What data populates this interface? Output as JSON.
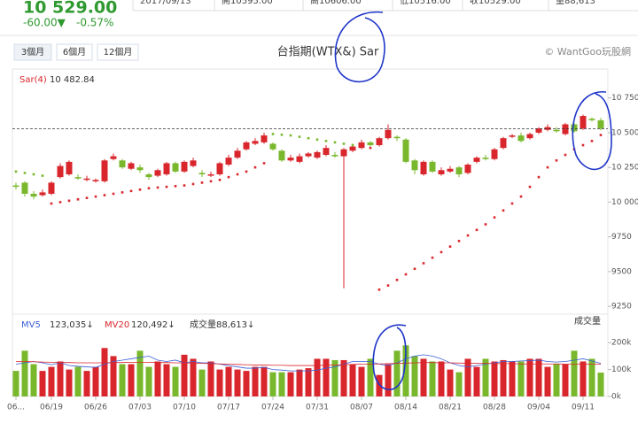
{
  "header": {
    "strip": [
      "2017/09/13",
      "開10595.00",
      "高10606.00",
      "低10516.00",
      "收10529.00",
      "量88,613"
    ],
    "price": "10 529.00",
    "change": "-60.00▼",
    "pct": "-0.57%",
    "buttons": [
      "3個月",
      "6個月",
      "12個月"
    ],
    "title": "台指期(WTX&) Sar",
    "copyright": "© WantGoo玩股網"
  },
  "chart_data": {
    "type": "candlestick",
    "categories": [
      "06...",
      null,
      null,
      null,
      "06/19",
      null,
      null,
      null,
      null,
      "06/26",
      null,
      null,
      null,
      null,
      "07/03",
      null,
      null,
      null,
      null,
      "07/10",
      null,
      null,
      null,
      null,
      "07/17",
      null,
      null,
      null,
      null,
      "07/24",
      null,
      null,
      null,
      null,
      "07/31",
      null,
      null,
      null,
      null,
      "08/07",
      null,
      null,
      null,
      null,
      "08/14",
      null,
      null,
      null,
      null,
      "08/21",
      null,
      null,
      null,
      null,
      "08/28",
      null,
      null,
      null,
      null,
      "09/04",
      null,
      null,
      null,
      null,
      "09/11",
      null,
      null
    ],
    "open": [
      10120,
      10140,
      10060,
      10050,
      10060,
      10180,
      10200,
      10180,
      10160,
      10150,
      10150,
      10310,
      10300,
      10240,
      10250,
      10200,
      10190,
      10200,
      10280,
      10220,
      10260,
      10210,
      10190,
      10200,
      10270,
      10320,
      10380,
      10420,
      10430,
      10420,
      10370,
      10300,
      10290,
      10330,
      10320,
      10340,
      10340,
      10330,
      10370,
      10390,
      10430,
      10410,
      10460,
      10470,
      10450,
      10300,
      10200,
      10290,
      10200,
      10220,
      10250,
      10210,
      10290,
      10320,
      10310,
      10390,
      10470,
      10480,
      10460,
      10500,
      10520,
      10520,
      10490,
      10560,
      10530,
      10600,
      10589
    ],
    "high": [
      10140,
      10150,
      10080,
      10090,
      10150,
      10280,
      10300,
      10200,
      10190,
      10170,
      10310,
      10350,
      10310,
      10290,
      10270,
      10210,
      10240,
      10290,
      10290,
      10300,
      10320,
      10230,
      10220,
      10290,
      10340,
      10390,
      10440,
      10460,
      10500,
      10430,
      10380,
      10340,
      10350,
      10360,
      10370,
      10410,
      10360,
      10390,
      10420,
      10450,
      10440,
      10470,
      10560,
      10480,
      10460,
      10310,
      10300,
      10300,
      10250,
      10260,
      10260,
      10280,
      10330,
      10340,
      10390,
      10470,
      10490,
      10500,
      10500,
      10540,
      10560,
      10540,
      10570,
      10570,
      10630,
      10610,
      10606
    ],
    "low": [
      10090,
      10040,
      10020,
      10040,
      10050,
      10170,
      10190,
      10160,
      10150,
      10140,
      10140,
      10300,
      10240,
      10230,
      10210,
      10160,
      10180,
      10190,
      10210,
      10210,
      10250,
      10180,
      10180,
      10190,
      10260,
      10310,
      10370,
      10410,
      10420,
      10370,
      10290,
      10290,
      10280,
      10320,
      10310,
      10330,
      10320,
      9380,
      10360,
      10380,
      10400,
      10400,
      10450,
      10440,
      10280,
      10200,
      10190,
      10210,
      10190,
      10210,
      10180,
      10200,
      10280,
      10300,
      10300,
      10380,
      10460,
      10430,
      10450,
      10490,
      10510,
      10500,
      10480,
      10500,
      10520,
      10580,
      10516
    ],
    "close": [
      10110,
      10060,
      10040,
      10070,
      10140,
      10260,
      10290,
      10170,
      10170,
      10160,
      10300,
      10330,
      10250,
      10280,
      10230,
      10180,
      10230,
      10280,
      10220,
      10290,
      10300,
      10200,
      10200,
      10280,
      10320,
      10370,
      10430,
      10440,
      10480,
      10380,
      10300,
      10320,
      10330,
      10350,
      10360,
      10390,
      10330,
      10380,
      10400,
      10430,
      10410,
      10460,
      10520,
      10460,
      10290,
      10230,
      10290,
      10220,
      10230,
      10240,
      10200,
      10270,
      10320,
      10310,
      10380,
      10460,
      10480,
      10440,
      10490,
      10530,
      10540,
      10510,
      10560,
      10510,
      10620,
      10590,
      10529
    ],
    "up_color": "#d9262c",
    "down_color": "#79b82c",
    "ylim": [
      9200,
      10800
    ],
    "yticks": [
      {
        "value": 10750,
        "label": "10 750"
      },
      {
        "value": 10500,
        "label": "10 500"
      },
      {
        "value": 10250,
        "label": "10 250"
      },
      {
        "value": 10000,
        "label": "10 000"
      },
      9750,
      9500,
      9250
    ],
    "sar": {
      "name": "Sar(4)",
      "value_label": "10 482.84",
      "values": [
        10220,
        10210,
        10200,
        10190,
        9990,
        10000,
        10010,
        10020,
        10030,
        10040,
        10050,
        10060,
        10070,
        10080,
        10090,
        10100,
        10105,
        10110,
        10115,
        10120,
        10130,
        10140,
        10150,
        10160,
        10180,
        10200,
        10220,
        10250,
        10280,
        10490,
        10485,
        10480,
        10470,
        10460,
        10450,
        10440,
        10430,
        10420,
        10410,
        10400,
        10390,
        9370,
        9400,
        9440,
        9480,
        9520,
        9560,
        9600,
        9640,
        9680,
        9720,
        9760,
        9800,
        9840,
        9890,
        9940,
        9990,
        10040,
        10110,
        10180,
        10250,
        10300,
        10340,
        10380,
        10410,
        10440,
        10482.84
      ]
    },
    "volume": {
      "title": "成交量",
      "name": "成交量",
      "value_label": "88,613↓",
      "values": [
        95,
        170,
        120,
        95,
        110,
        130,
        100,
        110,
        95,
        110,
        180,
        150,
        120,
        120,
        170,
        110,
        130,
        120,
        110,
        155,
        140,
        100,
        130,
        100,
        110,
        100,
        95,
        110,
        110,
        90,
        90,
        90,
        100,
        105,
        140,
        140,
        135,
        135,
        120,
        110,
        140,
        80,
        120,
        170,
        190,
        150,
        140,
        130,
        130,
        100,
        90,
        140,
        110,
        140,
        130,
        135,
        130,
        130,
        140,
        140,
        110,
        120,
        120,
        170,
        130,
        140,
        88.613
      ],
      "ylim": [
        0,
        250
      ],
      "yticks": [
        {
          "value": 200,
          "label": "200k"
        },
        {
          "value": 100,
          "label": "100k"
        },
        {
          "value": 0,
          "label": "0k"
        }
      ]
    },
    "mv5": {
      "name": "MV5",
      "value_label": "123,035↓",
      "color": "#3b5fd9",
      "values": [
        120,
        125,
        130,
        125,
        118,
        125,
        115,
        112,
        110,
        108,
        120,
        130,
        135,
        140,
        145,
        150,
        135,
        130,
        135,
        125,
        130,
        125,
        125,
        120,
        115,
        110,
        105,
        105,
        108,
        100,
        98,
        95,
        95,
        95,
        98,
        105,
        110,
        120,
        130,
        130,
        130,
        120,
        115,
        125,
        140,
        150,
        155,
        150,
        140,
        125,
        115,
        110,
        115,
        120,
        125,
        130,
        130,
        132,
        133,
        135,
        130,
        128,
        130,
        135,
        140,
        132,
        123.035
      ]
    },
    "mv20": {
      "name": "MV20",
      "value_label": "120,492↓",
      "color": "#d9262c",
      "values": [
        130,
        130,
        129,
        128,
        127,
        126,
        126,
        125,
        125,
        125,
        125,
        126,
        126,
        127,
        127,
        127,
        126,
        126,
        125,
        125,
        124,
        123,
        122,
        121,
        120,
        119,
        118,
        117,
        117,
        116,
        116,
        115,
        115,
        115,
        115,
        116,
        117,
        118,
        119,
        120,
        120,
        121,
        122,
        123,
        124,
        125,
        126,
        126,
        125,
        125,
        124,
        124,
        123,
        123,
        122,
        122,
        122,
        121,
        121,
        121,
        121,
        121,
        120,
        120,
        120,
        120,
        120.492
      ]
    }
  }
}
